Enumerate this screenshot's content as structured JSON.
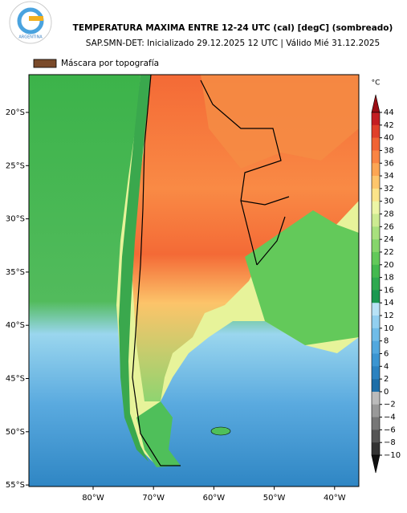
{
  "header": {
    "title": "TEMPERATURA MAXIMA ENTRE 12-24 UTC (cal) [degC] (sombreado)",
    "subtitle": "SAP.SMN-DET: Inicializado 29.12.2025 12 UTC | Válido Mié 31.12.2025",
    "logo_text": "ARGENTINA"
  },
  "legend": {
    "label": "Máscara por topografía",
    "color": "#7a4a2a"
  },
  "map": {
    "lat_labels": [
      "20°S",
      "25°S",
      "30°S",
      "35°S",
      "40°S",
      "45°S",
      "50°S",
      "55°S"
    ],
    "lon_labels": [
      "80°W",
      "70°W",
      "60°W",
      "50°W",
      "40°W"
    ]
  },
  "colorbar": {
    "unit": "°C",
    "ticks": [
      "44",
      "42",
      "40",
      "38",
      "36",
      "34",
      "32",
      "30",
      "28",
      "26",
      "24",
      "22",
      "20",
      "18",
      "16",
      "14",
      "12",
      "10",
      "8",
      "6",
      "4",
      "2",
      "0",
      "−2",
      "−4",
      "−6",
      "−8",
      "−10"
    ],
    "colors": [
      "#9b0d14",
      "#c41e22",
      "#e0402a",
      "#f06434",
      "#f98543",
      "#fca654",
      "#fdc66c",
      "#fbe48a",
      "#ecf5a6",
      "#cdeb92",
      "#a8e07e",
      "#86d56b",
      "#63c95a",
      "#44b94f",
      "#2fa94f",
      "#1a9850",
      "#b8e2f6",
      "#92cff0",
      "#70bce8",
      "#52a8de",
      "#3b95d1",
      "#2b82c0",
      "#1d6ea8",
      "#bbbbbb",
      "#999999",
      "#777777",
      "#555555",
      "#333333",
      "#111111"
    ]
  }
}
